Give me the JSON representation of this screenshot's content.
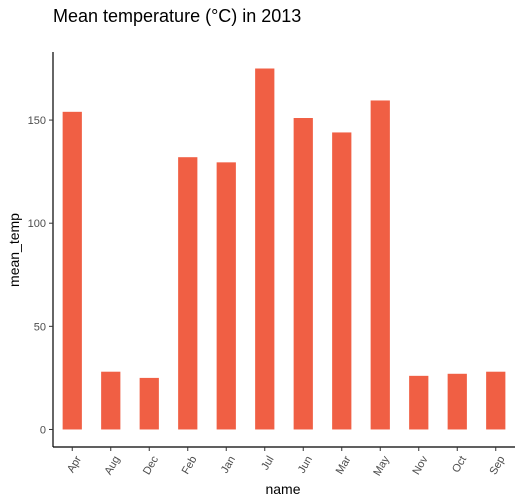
{
  "chart_data": {
    "type": "bar",
    "title": "Mean temperature (°C) in 2013",
    "xlabel": "name",
    "ylabel": "mean_temp",
    "categories": [
      "Apr",
      "Aug",
      "Dec",
      "Feb",
      "Jan",
      "Jul",
      "Jun",
      "Mar",
      "May",
      "Nov",
      "Oct",
      "Sep"
    ],
    "values": [
      154,
      28,
      25,
      132,
      129.5,
      175,
      151,
      144,
      159.5,
      26,
      27,
      28
    ],
    "yticks": [
      0,
      50,
      100,
      150
    ],
    "ylim": [
      -8.5,
      183
    ],
    "grid": false,
    "legend": "none",
    "colors": {
      "bar": "#f05f44",
      "axis": "#000000",
      "tick": "#333333",
      "tick_label": "#4d4d4d",
      "background": "#ffffff"
    }
  }
}
